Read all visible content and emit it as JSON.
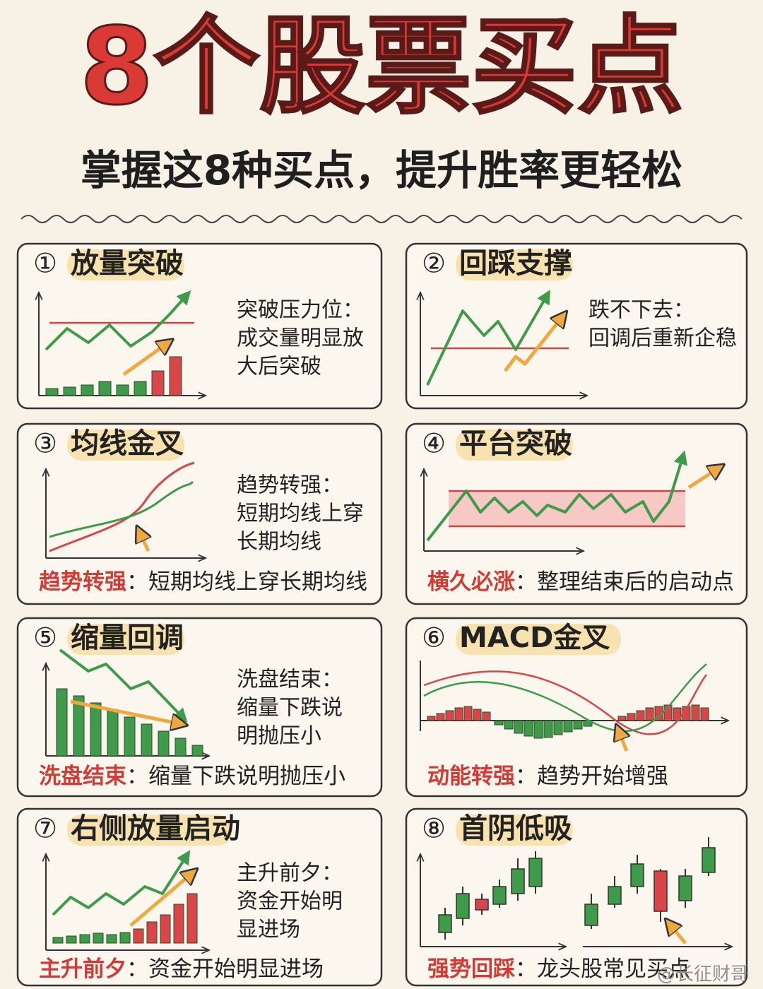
{
  "header": {
    "title": "8个股票买点",
    "subtitle": "掌握这8种买点，提升胜率更轻松"
  },
  "cards": [
    {
      "number": "①",
      "title": "放量突破",
      "desc": [
        "突破压力位：",
        "成交量明显放",
        "大后突破"
      ]
    },
    {
      "number": "②",
      "title": "回踩支撑",
      "desc": [
        "跌不下去：",
        "回调后重新企稳"
      ]
    },
    {
      "number": "③",
      "title": "均线金叉",
      "desc": [
        "趋势转强：",
        "短期均线上穿",
        "长期均线"
      ],
      "footer": {
        "label": "趋势转强",
        "text": "：短期均线上穿长期均线"
      }
    },
    {
      "number": "④",
      "title": "平台突破",
      "footer": {
        "label": "横久必涨",
        "text": "：整理结束后的启动点"
      }
    },
    {
      "number": "⑤",
      "title": "缩量回调",
      "desc": [
        "洗盘结束：",
        "缩量下跌说",
        "明抛压小"
      ],
      "footer": {
        "label": "洗盘结束",
        "text": "：缩量下跌说明抛压小"
      }
    },
    {
      "number": "⑥",
      "title": "MACD金叉",
      "footer": {
        "label": "动能转强",
        "text": "：趋势开始增强"
      }
    },
    {
      "number": "⑦",
      "title": "右侧放量启动",
      "desc": [
        "主升前夕：",
        "资金开始明",
        "显进场"
      ],
      "footer": {
        "label": "主升前夕",
        "text": "：资金开始明显进场"
      }
    },
    {
      "number": "⑧",
      "title": "首阴低吸",
      "footer": {
        "label": "强势回踩",
        "text": "：龙头股常见买点"
      }
    }
  ],
  "watermark": "@长征财哥"
}
